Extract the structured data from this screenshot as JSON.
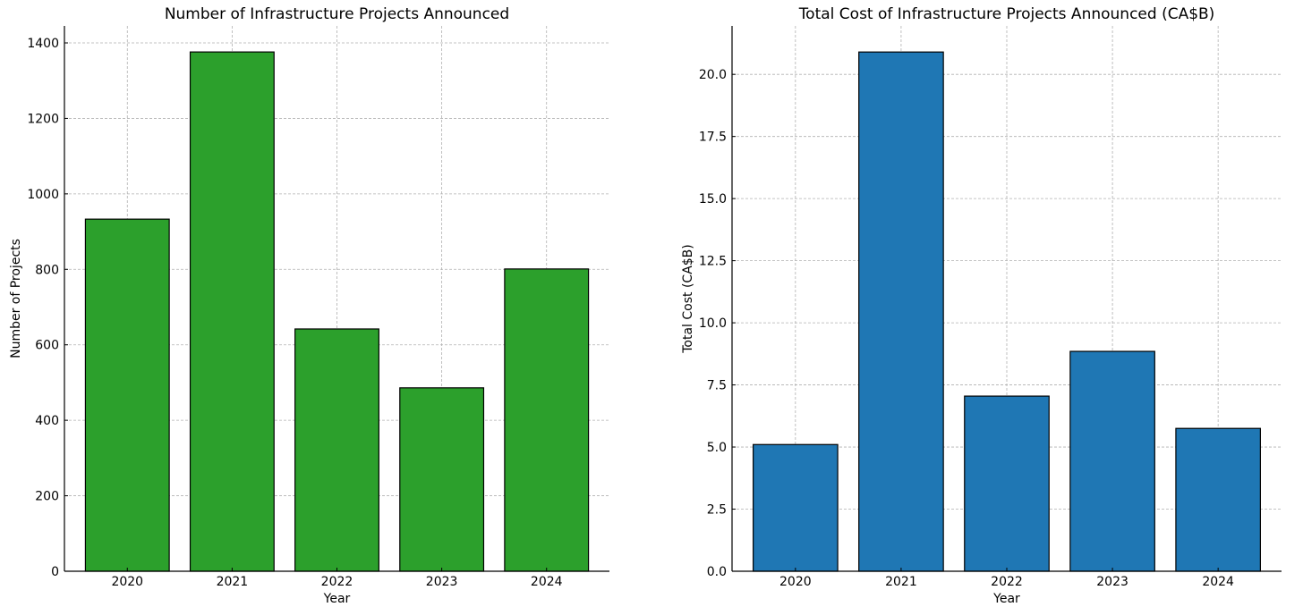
{
  "chart_data": [
    {
      "type": "bar",
      "title": "Number of Infrastructure Projects Announced",
      "xlabel": "Year",
      "ylabel": "Number of Projects",
      "categories": [
        "2020",
        "2021",
        "2022",
        "2023",
        "2024"
      ],
      "values": [
        933,
        1376,
        642,
        486,
        801
      ],
      "ylim": [
        0,
        1445
      ],
      "yticks": [
        0,
        200,
        400,
        600,
        800,
        1000,
        1200,
        1400
      ],
      "ytick_labels": [
        "0",
        "200",
        "400",
        "600",
        "800",
        "1000",
        "1200",
        "1400"
      ],
      "color": "#2ca02c",
      "grid": true
    },
    {
      "type": "bar",
      "title": "Total Cost of Infrastructure Projects Announced (CA$B)",
      "xlabel": "Year",
      "ylabel": "Total Cost (CA$B)",
      "categories": [
        "2020",
        "2021",
        "2022",
        "2023",
        "2024"
      ],
      "values": [
        5.1,
        20.9,
        7.05,
        8.85,
        5.75
      ],
      "ylim": [
        0,
        21.95
      ],
      "yticks": [
        0,
        2.5,
        5,
        7.5,
        10,
        12.5,
        15,
        17.5,
        20
      ],
      "ytick_labels": [
        "0.0",
        "2.5",
        "5.0",
        "7.5",
        "10.0",
        "12.5",
        "15.0",
        "17.5",
        "20.0"
      ],
      "color": "#1f77b4",
      "grid": true
    }
  ]
}
